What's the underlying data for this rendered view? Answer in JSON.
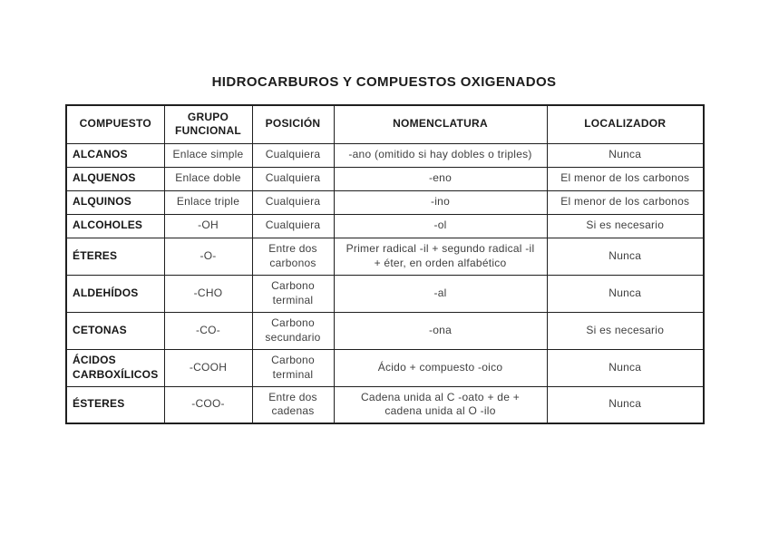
{
  "title": "HIDROCARBUROS Y COMPUESTOS OXIGENADOS",
  "table": {
    "headers": [
      "COMPUESTO",
      "GRUPO FUNCIONAL",
      "POSICIÓN",
      "NOMENCLATURA",
      "LOCALIZADOR"
    ],
    "rows": [
      [
        "ALCANOS",
        "Enlace simple",
        "Cualquiera",
        "-ano (omitido si hay dobles o triples)",
        "Nunca"
      ],
      [
        "ALQUENOS",
        "Enlace doble",
        "Cualquiera",
        "-eno",
        "El menor de los carbonos"
      ],
      [
        "ALQUINOS",
        "Enlace triple",
        "Cualquiera",
        "-ino",
        "El menor de los carbonos"
      ],
      [
        "ALCOHOLES",
        "-OH",
        "Cualquiera",
        "-ol",
        "Si es necesario"
      ],
      [
        "ÉTERES",
        "-O-",
        "Entre dos carbonos",
        "Primer radical -il + segundo radical -il + éter, en orden alfabético",
        "Nunca"
      ],
      [
        "ALDEHÍDOS",
        "-CHO",
        "Carbono terminal",
        "-al",
        "Nunca"
      ],
      [
        "CETONAS",
        "-CO-",
        "Carbono secundario",
        "-ona",
        "Si es necesario"
      ],
      [
        "ÁCIDOS CARBOXÍLICOS",
        "-COOH",
        "Carbono terminal",
        "Ácido + compuesto -oico",
        "Nunca"
      ],
      [
        "ÉSTERES",
        "-COO-",
        "Entre dos cadenas",
        "Cadena unida al C -oato + de + cadena unida al O -ilo",
        "Nunca"
      ]
    ]
  },
  "colors": {
    "background": "#ffffff",
    "border": "#1f1f1f",
    "heading_text": "#1b1b1b",
    "body_text": "#3f3f3f"
  }
}
